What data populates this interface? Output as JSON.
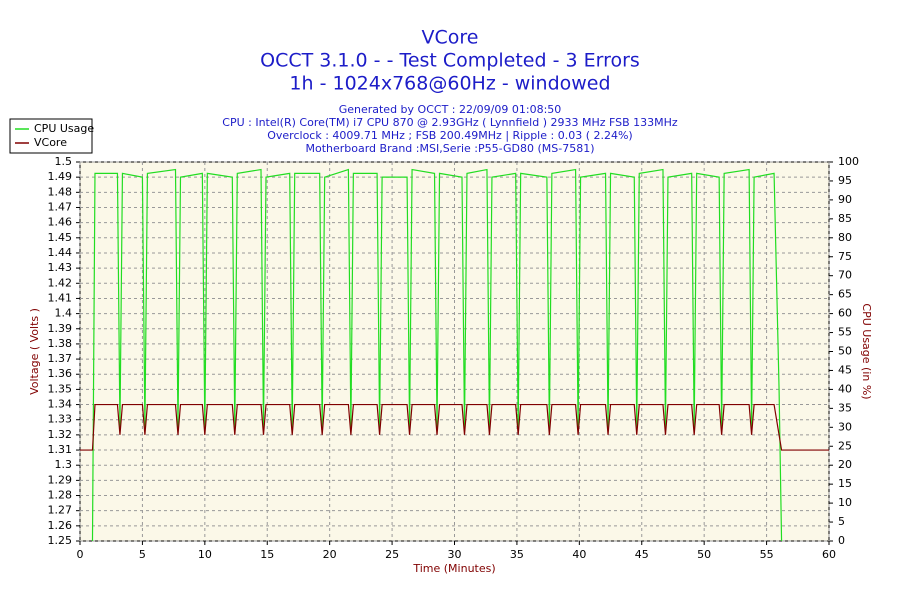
{
  "chart_data": {
    "type": "line",
    "title": [
      "VCore",
      "OCCT 3.1.0 -  - Test Completed - 3 Errors",
      "1h - 1024x768@60Hz - windowed"
    ],
    "subtitle": [
      "Generated by OCCT : 22/09/09 01:08:50",
      "CPU : Intel(R) Core(TM) i7 CPU 870 @ 2.93GHz ( Lynnfield ) 2933 MHz FSB 133MHz",
      "Overclock : 4009.71 MHz ; FSB 200.49MHz | Ripple : 0.03 ( 2.24%)",
      "Motherboard Brand :MSI,Serie :P55-GD80 (MS-7581)"
    ],
    "xlabel": "Time (Minutes)",
    "ylabel": "Voltage ( Volts )",
    "y2label": "CPU Usage (in %)",
    "xlim": [
      0,
      60
    ],
    "xticks": [
      0,
      5,
      10,
      15,
      20,
      25,
      30,
      35,
      40,
      45,
      50,
      55,
      60
    ],
    "ylim": [
      1.25,
      1.5
    ],
    "yticks": [
      1.25,
      1.26,
      1.27,
      1.28,
      1.29,
      1.3,
      1.31,
      1.32,
      1.33,
      1.34,
      1.35,
      1.36,
      1.37,
      1.38,
      1.39,
      1.4,
      1.41,
      1.42,
      1.43,
      1.44,
      1.45,
      1.46,
      1.47,
      1.48,
      1.49,
      1.5
    ],
    "y2lim": [
      0,
      100
    ],
    "y2ticks": [
      0,
      5,
      10,
      15,
      20,
      25,
      30,
      35,
      40,
      45,
      50,
      55,
      60,
      65,
      70,
      75,
      80,
      85,
      90,
      95,
      100
    ],
    "grid": true,
    "legend": "top-left",
    "x": [
      0,
      1.0,
      1.2,
      3.0,
      3.2,
      3.4,
      5.0,
      5.2,
      5.4,
      7.65,
      7.85,
      8.05,
      9.8,
      10.0,
      10.2,
      12.2,
      12.4,
      12.6,
      14.5,
      14.7,
      14.9,
      16.8,
      17.0,
      17.2,
      19.2,
      19.4,
      19.6,
      21.5,
      21.7,
      21.9,
      23.8,
      24.0,
      24.2,
      26.2,
      26.4,
      26.6,
      28.4,
      28.6,
      28.8,
      30.6,
      30.8,
      31.0,
      32.6,
      32.8,
      33.0,
      34.9,
      35.1,
      35.3,
      37.4,
      37.6,
      37.8,
      39.7,
      39.9,
      40.1,
      42.1,
      42.3,
      42.5,
      44.4,
      44.6,
      44.8,
      46.7,
      46.9,
      47.1,
      49.0,
      49.2,
      49.4,
      51.2,
      51.4,
      51.6,
      53.6,
      53.8,
      54.0,
      55.6,
      56.0,
      56.2,
      60
    ],
    "series": [
      {
        "name": "CPU Usage",
        "color": "#22dd22",
        "axis": "y2",
        "values": [
          null,
          0,
          97,
          97,
          30,
          97,
          96,
          30,
          97,
          98,
          30,
          96,
          97,
          30,
          97,
          96,
          30,
          97,
          98,
          30,
          96,
          97,
          30,
          97,
          97,
          30,
          96,
          98,
          30,
          97,
          97,
          30,
          96,
          96,
          30,
          98,
          97,
          30,
          97,
          96,
          30,
          97,
          98,
          30,
          96,
          97,
          30,
          97,
          96,
          30,
          97,
          98,
          30,
          96,
          97,
          30,
          97,
          96,
          30,
          97,
          98,
          30,
          96,
          97,
          30,
          97,
          96,
          30,
          97,
          98,
          30,
          96,
          97,
          40,
          0,
          null
        ]
      },
      {
        "name": "VCore",
        "color": "#800000",
        "values": [
          1.31,
          1.31,
          1.34,
          1.34,
          1.32,
          1.34,
          1.34,
          1.32,
          1.34,
          1.34,
          1.32,
          1.34,
          1.34,
          1.32,
          1.34,
          1.34,
          1.32,
          1.34,
          1.34,
          1.32,
          1.34,
          1.34,
          1.32,
          1.34,
          1.34,
          1.32,
          1.34,
          1.34,
          1.32,
          1.34,
          1.34,
          1.32,
          1.34,
          1.34,
          1.32,
          1.34,
          1.34,
          1.32,
          1.34,
          1.34,
          1.32,
          1.34,
          1.34,
          1.32,
          1.34,
          1.34,
          1.32,
          1.34,
          1.34,
          1.32,
          1.34,
          1.34,
          1.32,
          1.34,
          1.34,
          1.32,
          1.34,
          1.34,
          1.32,
          1.34,
          1.34,
          1.32,
          1.34,
          1.34,
          1.32,
          1.34,
          1.34,
          1.32,
          1.34,
          1.34,
          1.32,
          1.34,
          1.34,
          1.32,
          1.31,
          1.31
        ]
      }
    ]
  }
}
